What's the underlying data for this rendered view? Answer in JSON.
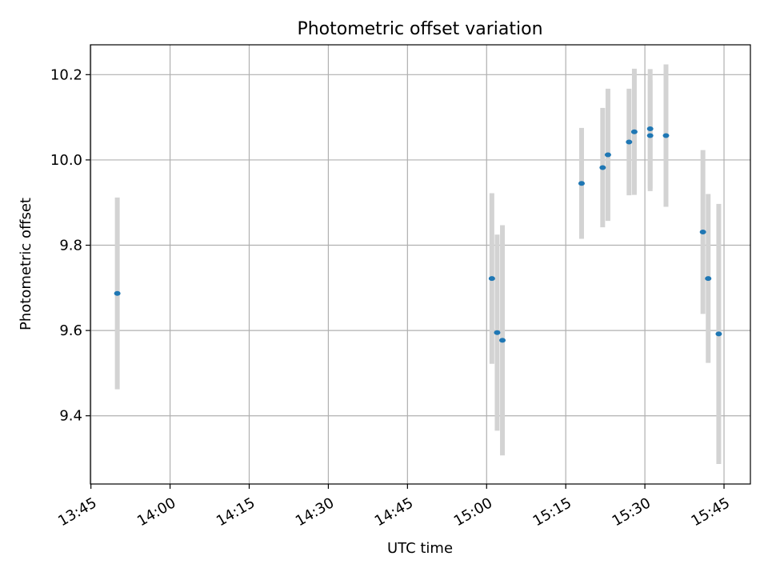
{
  "chart_data": {
    "type": "scatter",
    "title": "Photometric offset variation",
    "xlabel": "UTC time",
    "ylabel": "Photometric offset",
    "x_ticks": [
      "13:45",
      "14:00",
      "14:15",
      "14:30",
      "14:45",
      "15:00",
      "15:15",
      "15:30",
      "15:45"
    ],
    "y_ticks": [
      "9.4",
      "9.6",
      "9.8",
      "10.0",
      "10.2"
    ],
    "xlim": [
      "13:45",
      "15:50"
    ],
    "ylim": [
      9.24,
      10.27
    ],
    "grid": true,
    "point_color": "#1f77b4",
    "errorbar_color": "#d3d3d3",
    "points": [
      {
        "x": "13:50",
        "y": 9.687,
        "err": 0.225
      },
      {
        "x": "15:01",
        "y": 9.722,
        "err": 0.2
      },
      {
        "x": "15:02",
        "y": 9.595,
        "err": 0.23
      },
      {
        "x": "15:03",
        "y": 9.577,
        "err": 0.27
      },
      {
        "x": "15:18",
        "y": 9.945,
        "err": 0.13
      },
      {
        "x": "15:22",
        "y": 9.982,
        "err": 0.14
      },
      {
        "x": "15:23",
        "y": 10.012,
        "err": 0.155
      },
      {
        "x": "15:27",
        "y": 10.042,
        "err": 0.125
      },
      {
        "x": "15:28",
        "y": 10.066,
        "err": 0.148
      },
      {
        "x": "15:31",
        "y": 10.073,
        "err": 0.14
      },
      {
        "x": "15:31",
        "y": 10.057,
        "err": 0.13
      },
      {
        "x": "15:34",
        "y": 10.057,
        "err": 0.167
      },
      {
        "x": "15:41",
        "y": 9.831,
        "err": 0.192
      },
      {
        "x": "15:42",
        "y": 9.722,
        "err": 0.198
      },
      {
        "x": "15:44",
        "y": 9.592,
        "err": 0.305
      }
    ]
  }
}
